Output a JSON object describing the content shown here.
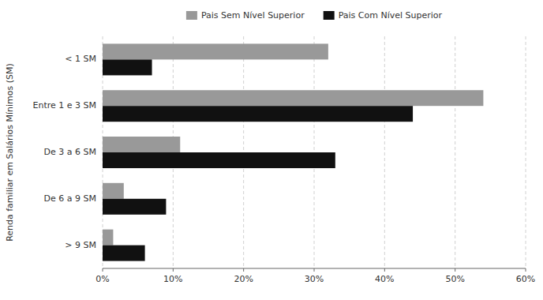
{
  "chart_data": {
    "type": "bar",
    "orientation": "horizontal",
    "categories": [
      "< 1 SM",
      "Entre 1 e 3 SM",
      "De 3 a 6 SM",
      "De 6 a 9 SM",
      "> 9 SM"
    ],
    "series": [
      {
        "name": "Pais Sem Nível Superior",
        "color": "#999999",
        "values": [
          32,
          54,
          11,
          3,
          1.5
        ]
      },
      {
        "name": "Pais Com Nível Superior",
        "color": "#111111",
        "values": [
          7,
          44,
          33,
          9,
          6
        ]
      }
    ],
    "xlim": [
      0,
      60
    ],
    "xticks": [
      {
        "value": 0,
        "label": "0%"
      },
      {
        "value": 10,
        "label": "10%"
      },
      {
        "value": 20,
        "label": "20%"
      },
      {
        "value": 30,
        "label": "30%"
      },
      {
        "value": 40,
        "label": "40%"
      },
      {
        "value": 50,
        "label": "50%"
      },
      {
        "value": 60,
        "label": "60%"
      }
    ],
    "y_label": "Renda familiar em Salários Mínimos (SM)",
    "grid": true,
    "legend": "top"
  }
}
